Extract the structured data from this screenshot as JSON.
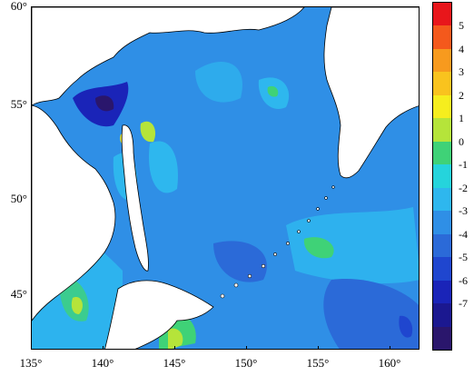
{
  "map": {
    "x_ticks": [
      "135°",
      "140°",
      "145°",
      "150°",
      "155°",
      "160°"
    ],
    "y_ticks": [
      "60°",
      "55°",
      "50°",
      "45°"
    ],
    "lon_range": [
      135,
      162
    ],
    "lat_range": [
      42,
      60
    ]
  },
  "colorbar": {
    "labels": [
      "5",
      "4",
      "3",
      "2",
      "1",
      "0",
      "-1",
      "-2",
      "-3",
      "-4",
      "-5",
      "-6",
      "-7"
    ],
    "colors": [
      "#e8161b",
      "#f4591c",
      "#f79a1e",
      "#f9c31e",
      "#f6ee1e",
      "#b5e43a",
      "#3fd277",
      "#25d4dc",
      "#2eb7ee",
      "#2f8fe6",
      "#2b6ad8",
      "#1f46cf",
      "#1a24b8",
      "#1b1890",
      "#2a166c"
    ]
  },
  "colors": {
    "sea_main": "#2f8fe6",
    "sea_light": "#2eb7ee",
    "sea_dark": "#2b6ad8",
    "land": "#ffffff",
    "coast": "#000000"
  }
}
